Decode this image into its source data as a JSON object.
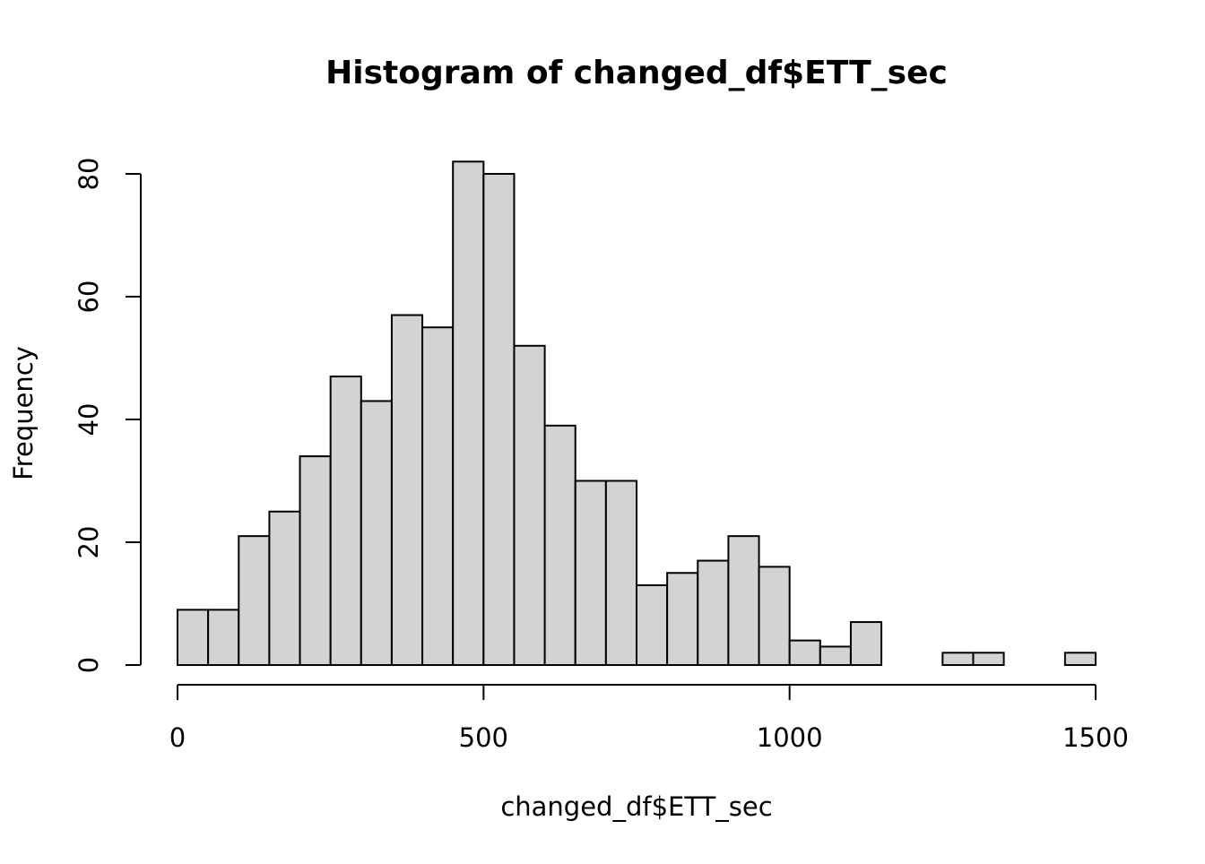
{
  "chart_data": {
    "type": "bar",
    "title": "Histogram of changed_df$ETT_sec",
    "xlabel": "changed_df$ETT_sec",
    "ylabel": "Frequency",
    "bin_edges": [
      0,
      50,
      100,
      150,
      200,
      250,
      300,
      350,
      400,
      450,
      500,
      550,
      600,
      650,
      700,
      750,
      800,
      850,
      900,
      950,
      1000,
      1050,
      1100,
      1150,
      1200,
      1250,
      1300,
      1350,
      1400,
      1450,
      1500
    ],
    "values": [
      9,
      9,
      21,
      25,
      34,
      47,
      43,
      57,
      55,
      82,
      80,
      52,
      39,
      30,
      30,
      13,
      15,
      17,
      21,
      16,
      4,
      3,
      7,
      0,
      0,
      2,
      2,
      0,
      0,
      2
    ],
    "xlim": [
      0,
      1500
    ],
    "ylim": [
      0,
      80
    ],
    "xticks": [
      0,
      500,
      1000,
      1500
    ],
    "xtick_labels": [
      "0",
      "500",
      "1000",
      "1500"
    ],
    "yticks": [
      0,
      20,
      40,
      60,
      80
    ],
    "ytick_labels": [
      "0",
      "20",
      "40",
      "60",
      "80"
    ],
    "colors": {
      "bar_fill": "#d3d3d3",
      "bar_stroke": "#000000",
      "axis": "#000000"
    },
    "grid": false,
    "legend": "none"
  }
}
